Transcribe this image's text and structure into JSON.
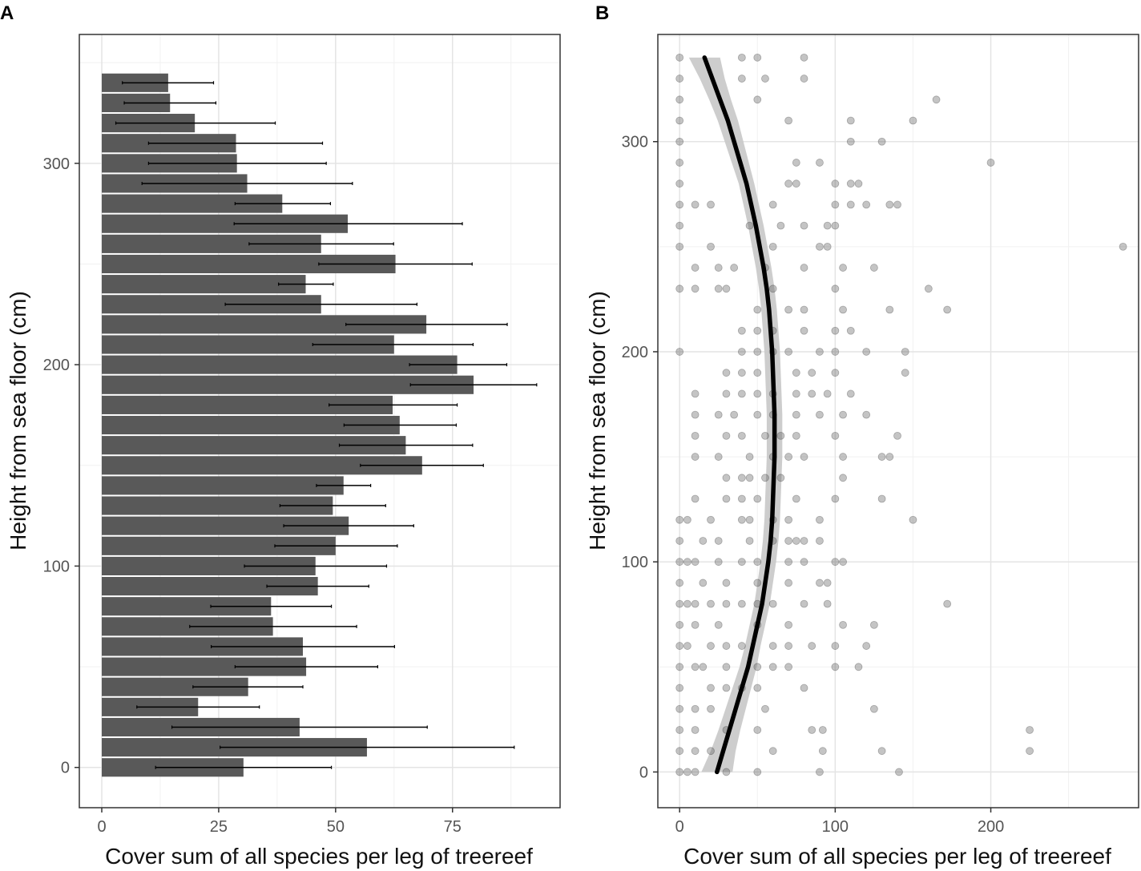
{
  "chart_data": [
    {
      "panel": "A",
      "type": "bar",
      "orientation": "horizontal",
      "xlabel": "Cover sum of all species per leg of treereef",
      "ylabel": "Height from sea floor (cm)",
      "xlim": [
        -4.8,
        98
      ],
      "ylim": [
        -20,
        364
      ],
      "x_ticks": [
        0,
        25,
        50,
        75
      ],
      "y_ticks": [
        0,
        100,
        200,
        300
      ],
      "bar_color": "#595959",
      "error_color": "#000000",
      "categories": [
        0,
        10,
        20,
        30,
        40,
        50,
        60,
        70,
        80,
        90,
        100,
        110,
        120,
        130,
        140,
        150,
        160,
        170,
        180,
        190,
        200,
        210,
        220,
        230,
        240,
        250,
        260,
        270,
        280,
        290,
        300,
        310,
        320,
        330,
        340
      ],
      "values": [
        30.3,
        56.7,
        42.3,
        20.6,
        31.3,
        43.7,
        43.0,
        36.6,
        36.2,
        46.2,
        45.7,
        50.0,
        52.8,
        49.4,
        51.7,
        68.5,
        65.0,
        63.7,
        62.2,
        79.5,
        76.0,
        62.5,
        69.4,
        46.9,
        43.6,
        62.8,
        46.9,
        52.6,
        38.6,
        31.1,
        28.9,
        28.7,
        19.9,
        14.6,
        14.2
      ],
      "error_low": [
        11.5,
        25.3,
        15.0,
        7.5,
        19.5,
        28.5,
        23.4,
        18.8,
        23.3,
        35.3,
        30.5,
        37.0,
        38.9,
        38.1,
        45.9,
        55.3,
        50.8,
        51.8,
        48.6,
        66.0,
        65.8,
        45.1,
        52.2,
        26.4,
        37.8,
        46.4,
        31.5,
        28.3,
        28.5,
        8.6,
        10.0,
        10.0,
        3.0,
        4.8,
        4.4
      ],
      "error_high": [
        49.1,
        88.2,
        69.6,
        33.7,
        43.0,
        59.0,
        62.6,
        54.5,
        49.1,
        57.1,
        60.9,
        63.2,
        66.7,
        60.7,
        57.5,
        81.6,
        79.3,
        75.8,
        76.0,
        93.0,
        86.6,
        79.4,
        86.7,
        67.4,
        49.5,
        79.2,
        62.4,
        77.1,
        48.9,
        53.6,
        48.0,
        47.2,
        37.1,
        24.4,
        23.9
      ]
    },
    {
      "panel": "B",
      "type": "scatter",
      "xlabel": "Cover sum of all species per leg of treereef",
      "ylabel": "Height from sea floor (cm)",
      "xlim": [
        -14,
        295
      ],
      "ylim": [
        -17,
        351
      ],
      "x_ticks": [
        0,
        100,
        200
      ],
      "y_ticks": [
        0,
        100,
        200,
        300
      ],
      "point_color": "#555555",
      "point_alpha": 0.35,
      "smooth_line_color": "#000000",
      "ribbon_color": "#c8c8c8",
      "points": [
        [
          0,
          0
        ],
        [
          5,
          0
        ],
        [
          10,
          0
        ],
        [
          30,
          0
        ],
        [
          50,
          0
        ],
        [
          90,
          0
        ],
        [
          141,
          0
        ],
        [
          0,
          10
        ],
        [
          10,
          10
        ],
        [
          20,
          10
        ],
        [
          60,
          10
        ],
        [
          92,
          10
        ],
        [
          130,
          10
        ],
        [
          225,
          10
        ],
        [
          0,
          20
        ],
        [
          10,
          20
        ],
        [
          30,
          20
        ],
        [
          50,
          20
        ],
        [
          85,
          20
        ],
        [
          92,
          20
        ],
        [
          225,
          20
        ],
        [
          0,
          30
        ],
        [
          10,
          30
        ],
        [
          20,
          30
        ],
        [
          55,
          30
        ],
        [
          125,
          30
        ],
        [
          0,
          40
        ],
        [
          20,
          40
        ],
        [
          30,
          40
        ],
        [
          40,
          40
        ],
        [
          50,
          40
        ],
        [
          80,
          40
        ],
        [
          0,
          50
        ],
        [
          10,
          50
        ],
        [
          15,
          50
        ],
        [
          30,
          50
        ],
        [
          50,
          50
        ],
        [
          60,
          50
        ],
        [
          70,
          50
        ],
        [
          100,
          50
        ],
        [
          115,
          50
        ],
        [
          0,
          60
        ],
        [
          5,
          60
        ],
        [
          20,
          60
        ],
        [
          30,
          60
        ],
        [
          40,
          60
        ],
        [
          60,
          60
        ],
        [
          70,
          60
        ],
        [
          85,
          60
        ],
        [
          100,
          60
        ],
        [
          120,
          60
        ],
        [
          0,
          70
        ],
        [
          10,
          70
        ],
        [
          25,
          70
        ],
        [
          50,
          70
        ],
        [
          70,
          70
        ],
        [
          105,
          70
        ],
        [
          125,
          70
        ],
        [
          0,
          80
        ],
        [
          5,
          80
        ],
        [
          10,
          80
        ],
        [
          20,
          80
        ],
        [
          30,
          80
        ],
        [
          40,
          80
        ],
        [
          50,
          80
        ],
        [
          60,
          80
        ],
        [
          80,
          80
        ],
        [
          95,
          80
        ],
        [
          172,
          80
        ],
        [
          0,
          90
        ],
        [
          15,
          90
        ],
        [
          30,
          90
        ],
        [
          50,
          90
        ],
        [
          70,
          90
        ],
        [
          90,
          90
        ],
        [
          95,
          90
        ],
        [
          0,
          100
        ],
        [
          5,
          100
        ],
        [
          10,
          100
        ],
        [
          25,
          100
        ],
        [
          40,
          100
        ],
        [
          50,
          100
        ],
        [
          70,
          100
        ],
        [
          80,
          100
        ],
        [
          100,
          100
        ],
        [
          105,
          100
        ],
        [
          0,
          110
        ],
        [
          15,
          110
        ],
        [
          25,
          110
        ],
        [
          45,
          110
        ],
        [
          60,
          110
        ],
        [
          70,
          110
        ],
        [
          75,
          110
        ],
        [
          80,
          110
        ],
        [
          90,
          110
        ],
        [
          0,
          120
        ],
        [
          5,
          120
        ],
        [
          20,
          120
        ],
        [
          40,
          120
        ],
        [
          45,
          120
        ],
        [
          60,
          120
        ],
        [
          70,
          120
        ],
        [
          90,
          120
        ],
        [
          150,
          120
        ],
        [
          10,
          130
        ],
        [
          30,
          130
        ],
        [
          40,
          130
        ],
        [
          50,
          130
        ],
        [
          75,
          130
        ],
        [
          100,
          130
        ],
        [
          130,
          130
        ],
        [
          30,
          140
        ],
        [
          40,
          140
        ],
        [
          45,
          140
        ],
        [
          55,
          140
        ],
        [
          65,
          140
        ],
        [
          105,
          140
        ],
        [
          10,
          150
        ],
        [
          25,
          150
        ],
        [
          45,
          150
        ],
        [
          60,
          150
        ],
        [
          70,
          150
        ],
        [
          80,
          150
        ],
        [
          105,
          150
        ],
        [
          130,
          150
        ],
        [
          135,
          150
        ],
        [
          10,
          160
        ],
        [
          30,
          160
        ],
        [
          40,
          160
        ],
        [
          55,
          160
        ],
        [
          65,
          160
        ],
        [
          75,
          160
        ],
        [
          100,
          160
        ],
        [
          140,
          160
        ],
        [
          10,
          170
        ],
        [
          25,
          170
        ],
        [
          35,
          170
        ],
        [
          50,
          170
        ],
        [
          60,
          170
        ],
        [
          75,
          170
        ],
        [
          90,
          170
        ],
        [
          105,
          170
        ],
        [
          120,
          170
        ],
        [
          10,
          180
        ],
        [
          30,
          180
        ],
        [
          40,
          180
        ],
        [
          50,
          180
        ],
        [
          60,
          180
        ],
        [
          75,
          180
        ],
        [
          85,
          180
        ],
        [
          95,
          180
        ],
        [
          110,
          180
        ],
        [
          30,
          190
        ],
        [
          40,
          190
        ],
        [
          50,
          190
        ],
        [
          75,
          190
        ],
        [
          85,
          190
        ],
        [
          100,
          190
        ],
        [
          145,
          190
        ],
        [
          0,
          200
        ],
        [
          40,
          200
        ],
        [
          50,
          200
        ],
        [
          60,
          200
        ],
        [
          70,
          200
        ],
        [
          90,
          200
        ],
        [
          100,
          200
        ],
        [
          120,
          200
        ],
        [
          145,
          200
        ],
        [
          40,
          210
        ],
        [
          50,
          210
        ],
        [
          60,
          210
        ],
        [
          80,
          210
        ],
        [
          100,
          210
        ],
        [
          110,
          210
        ],
        [
          50,
          220
        ],
        [
          70,
          220
        ],
        [
          80,
          220
        ],
        [
          105,
          220
        ],
        [
          135,
          220
        ],
        [
          172,
          220
        ],
        [
          0,
          230
        ],
        [
          10,
          230
        ],
        [
          25,
          230
        ],
        [
          30,
          230
        ],
        [
          60,
          230
        ],
        [
          100,
          230
        ],
        [
          160,
          230
        ],
        [
          10,
          240
        ],
        [
          25,
          240
        ],
        [
          35,
          240
        ],
        [
          55,
          240
        ],
        [
          80,
          240
        ],
        [
          105,
          240
        ],
        [
          125,
          240
        ],
        [
          0,
          250
        ],
        [
          20,
          250
        ],
        [
          60,
          250
        ],
        [
          90,
          250
        ],
        [
          95,
          250
        ],
        [
          285,
          250
        ],
        [
          0,
          260
        ],
        [
          45,
          260
        ],
        [
          65,
          260
        ],
        [
          80,
          260
        ],
        [
          95,
          260
        ],
        [
          100,
          260
        ],
        [
          0,
          270
        ],
        [
          10,
          270
        ],
        [
          20,
          270
        ],
        [
          60,
          270
        ],
        [
          100,
          270
        ],
        [
          110,
          270
        ],
        [
          120,
          270
        ],
        [
          135,
          270
        ],
        [
          140,
          270
        ],
        [
          0,
          280
        ],
        [
          70,
          280
        ],
        [
          75,
          280
        ],
        [
          100,
          280
        ],
        [
          110,
          280
        ],
        [
          115,
          280
        ],
        [
          0,
          290
        ],
        [
          75,
          290
        ],
        [
          90,
          290
        ],
        [
          200,
          290
        ],
        [
          0,
          300
        ],
        [
          110,
          300
        ],
        [
          130,
          300
        ],
        [
          0,
          310
        ],
        [
          70,
          310
        ],
        [
          110,
          310
        ],
        [
          150,
          310
        ],
        [
          0,
          320
        ],
        [
          50,
          320
        ],
        [
          165,
          320
        ],
        [
          0,
          330
        ],
        [
          40,
          330
        ],
        [
          55,
          330
        ],
        [
          80,
          330
        ],
        [
          0,
          340
        ],
        [
          40,
          340
        ],
        [
          50,
          340
        ],
        [
          80,
          340
        ]
      ],
      "smooth": [
        [
          24,
          0
        ],
        [
          28,
          10
        ],
        [
          32,
          20
        ],
        [
          36,
          30
        ],
        [
          40,
          40
        ],
        [
          44,
          50
        ],
        [
          47,
          60
        ],
        [
          50,
          70
        ],
        [
          53,
          80
        ],
        [
          55,
          90
        ],
        [
          57,
          100
        ],
        [
          58.5,
          110
        ],
        [
          59.5,
          120
        ],
        [
          60,
          130
        ],
        [
          60.5,
          140
        ],
        [
          61,
          150
        ],
        [
          61,
          160
        ],
        [
          61,
          170
        ],
        [
          60.5,
          180
        ],
        [
          60,
          190
        ],
        [
          59.5,
          200
        ],
        [
          58.5,
          210
        ],
        [
          57.5,
          220
        ],
        [
          56,
          230
        ],
        [
          54,
          240
        ],
        [
          51.5,
          250
        ],
        [
          49,
          260
        ],
        [
          46,
          270
        ],
        [
          43,
          280
        ],
        [
          39,
          290
        ],
        [
          35,
          300
        ],
        [
          31,
          310
        ],
        [
          26,
          320
        ],
        [
          21,
          330
        ],
        [
          16,
          340
        ]
      ],
      "ribbon_halfwidth": [
        10,
        8,
        7,
        6.5,
        6,
        5.5,
        5,
        5,
        5,
        5,
        5,
        5,
        5,
        5,
        5,
        5,
        5,
        5,
        5,
        5,
        5,
        5,
        5,
        5,
        5,
        5,
        5,
        5,
        5,
        5.5,
        6,
        6.5,
        7,
        8,
        10
      ]
    }
  ]
}
